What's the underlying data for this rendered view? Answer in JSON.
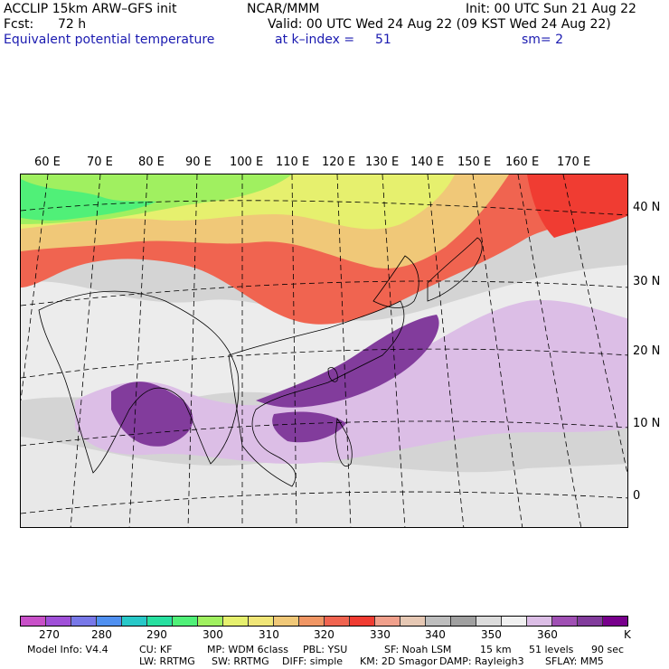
{
  "header": {
    "model": "ACCLIP 15km ARW–GFS init",
    "center": "NCAR/MMM",
    "init": "Init: 00 UTC Sun 21 Aug 22",
    "fcst_label": "Fcst:",
    "fcst_value": "72 h",
    "valid": "Valid: 00 UTC Wed 24 Aug 22 (09 KST Wed 24 Aug 22)",
    "field": "Equivalent potential temperature",
    "level": "at k–index =",
    "level_value": "51",
    "smooth": "sm= 2"
  },
  "map": {
    "lon_labels": [
      "60 E",
      "70 E",
      "80 E",
      "90 E",
      "100 E",
      "110 E",
      "120 E",
      "130 E",
      "140 E",
      "150 E",
      "160 E",
      "170 E"
    ],
    "lat_labels": [
      "40 N",
      "30 N",
      "20 N",
      "10 N",
      "0"
    ]
  },
  "colorbar": {
    "colors": [
      "#c850c8",
      "#a050d8",
      "#7878e8",
      "#5090f0",
      "#28c8c8",
      "#28e0a0",
      "#50f078",
      "#a0f060",
      "#e6f06e",
      "#f0e678",
      "#f0c878",
      "#f09664",
      "#f06450",
      "#f03c32",
      "#f0a08c",
      "#e6c8b4",
      "#bebebe",
      "#a0a0a0",
      "#dcdcdc",
      "#f0f0f0",
      "#dcbee6",
      "#a050b4",
      "#823c9c",
      "#78008c"
    ],
    "labels": [
      "270",
      "280",
      "290",
      "300",
      "310",
      "320",
      "330",
      "340",
      "350",
      "360",
      "K"
    ]
  },
  "footer": {
    "line1": [
      "Model Info: V4.4",
      "CU: KF",
      "MP: WDM 6class",
      "PBL: YSU",
      "SF: Noah LSM",
      "15 km",
      "51 levels",
      "90 sec"
    ],
    "line2": [
      "LW: RRTMG",
      "SW: RRTMG",
      "DIFF: simple",
      "KM: 2D Smagor",
      "DAMP: Rayleigh3",
      "SFLAY: MM5"
    ]
  }
}
